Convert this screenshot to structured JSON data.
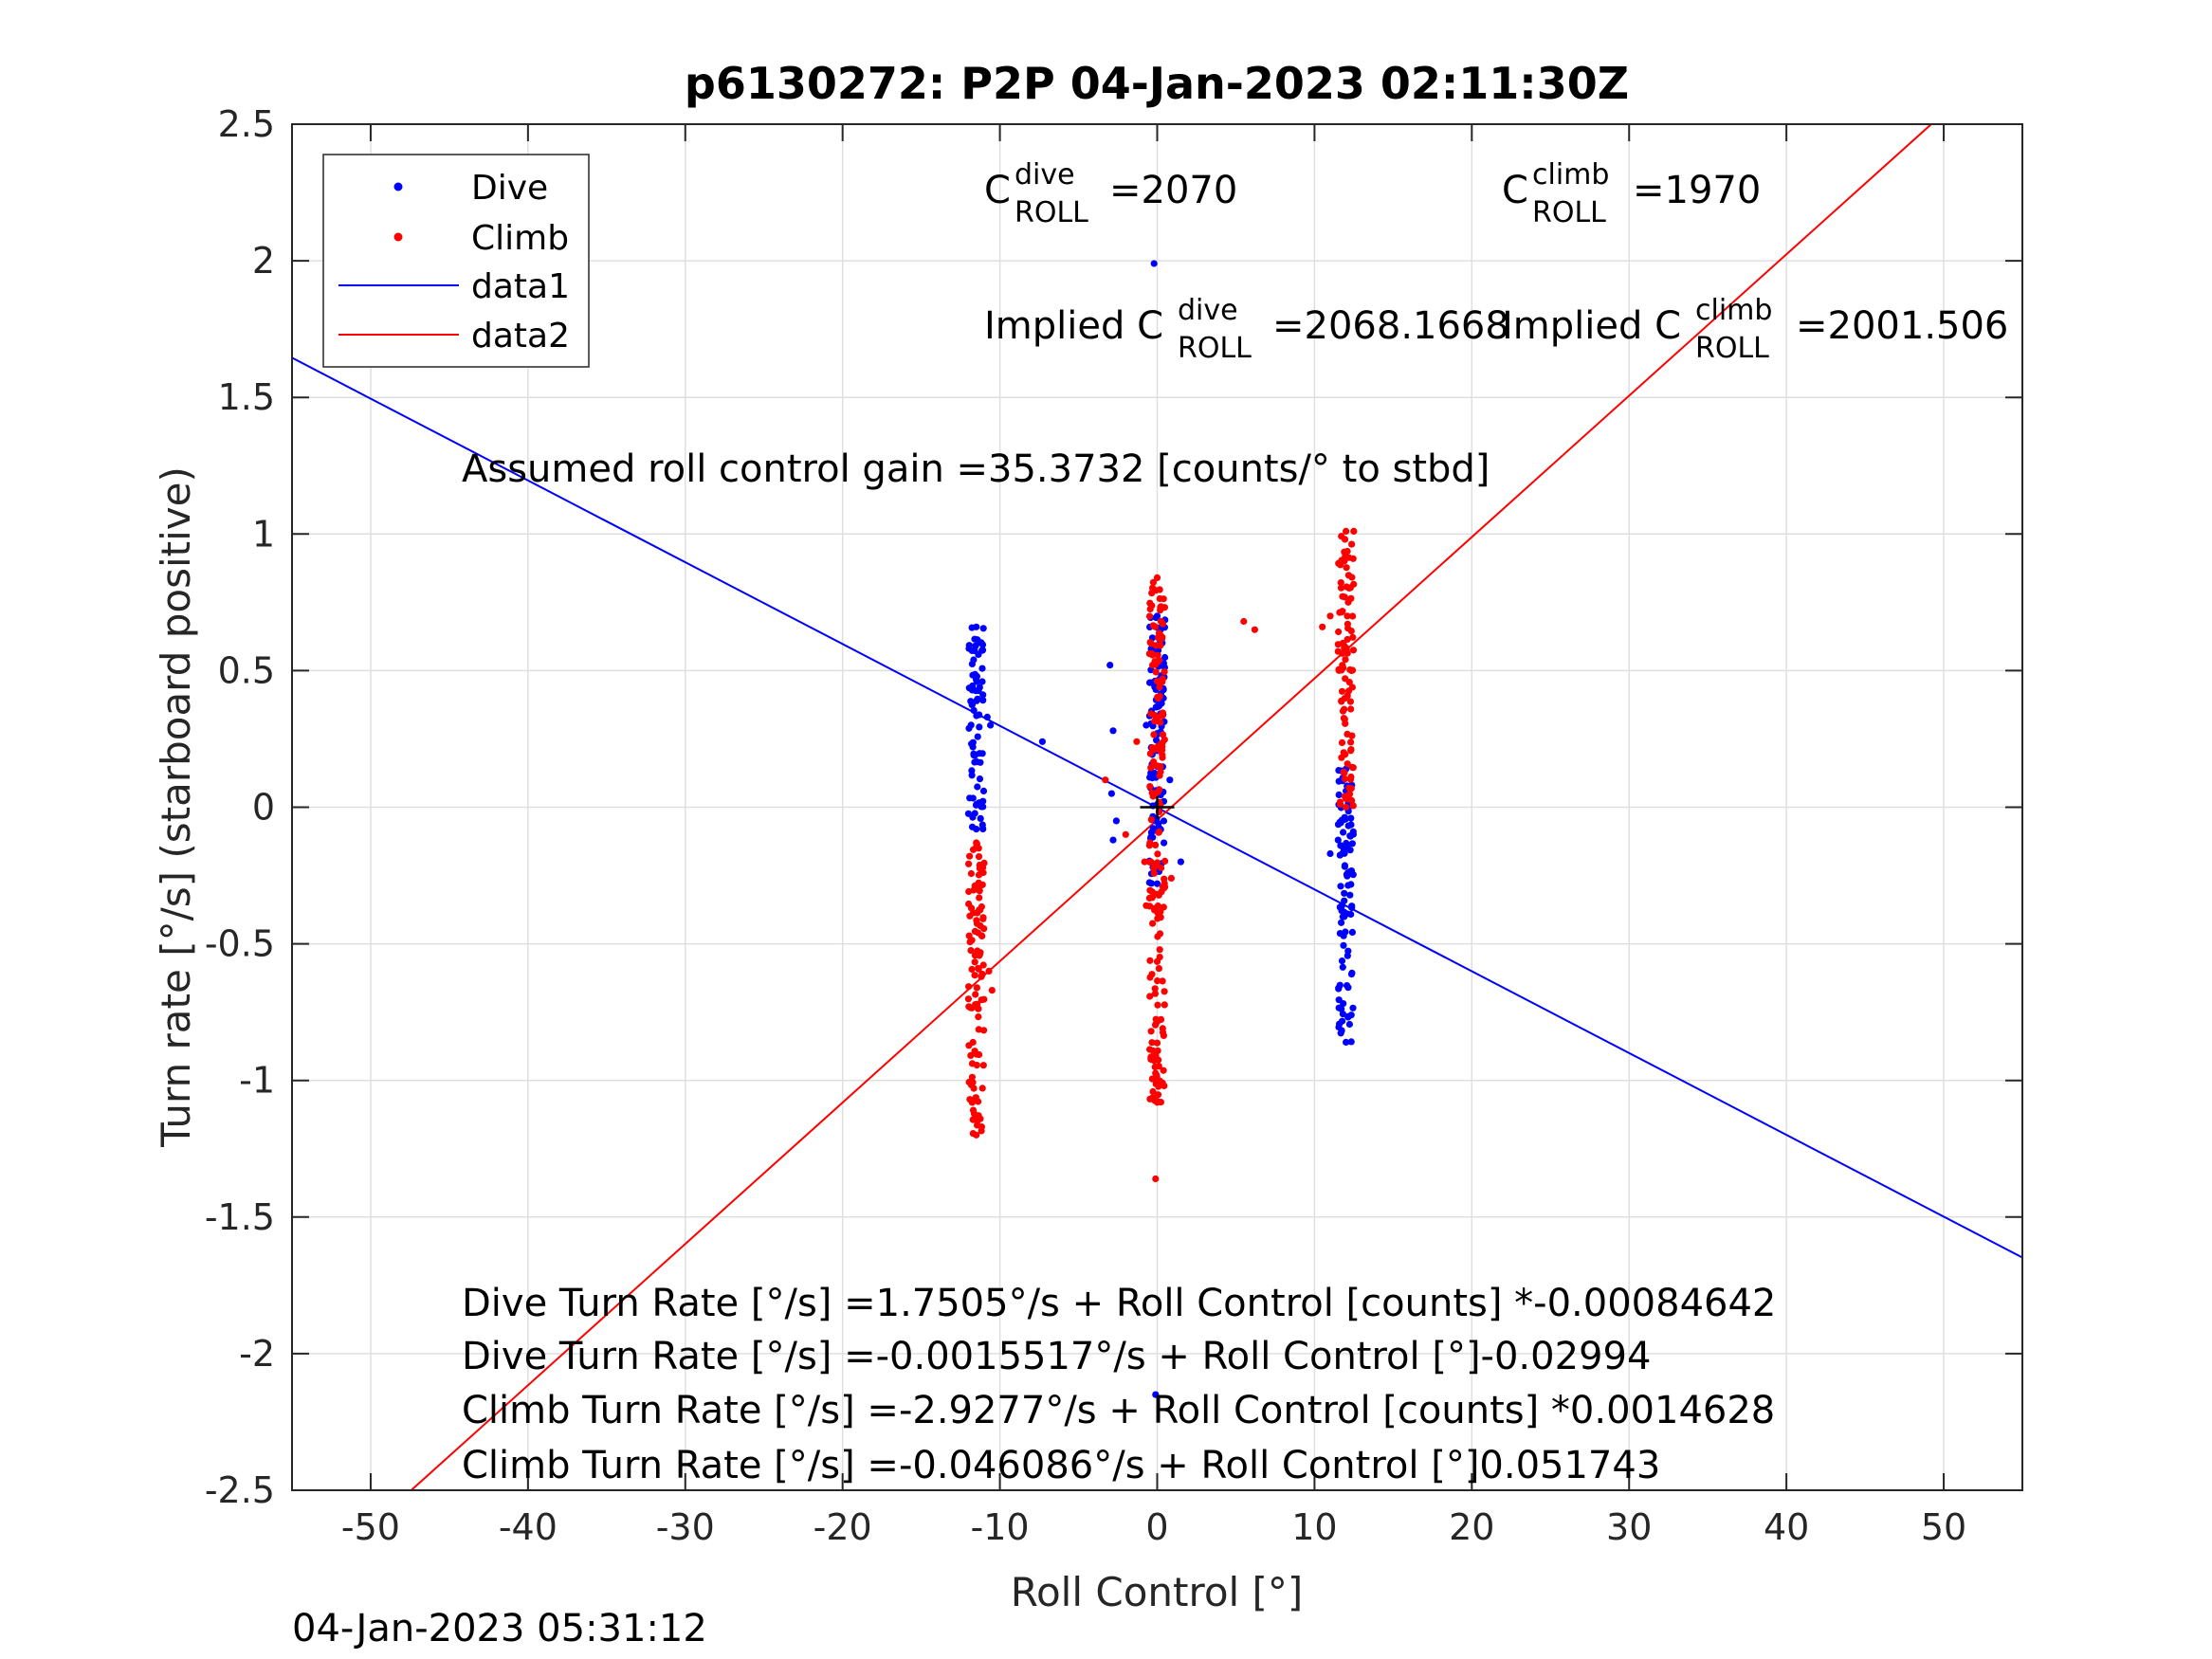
{
  "chart_data": {
    "type": "scatter",
    "title": "p6130272: P2P 04-Jan-2023 02:11:30Z",
    "xlabel": "Roll Control [°]",
    "ylabel": "Turn rate [°/s] (starboard positive)",
    "xlim": [
      -55,
      55
    ],
    "ylim": [
      -2.5,
      2.5
    ],
    "xticks": [
      -50,
      -40,
      -30,
      -20,
      -10,
      0,
      10,
      20,
      30,
      40,
      50
    ],
    "yticks": [
      2.5,
      2,
      1.5,
      1,
      0.5,
      0,
      -0.5,
      -1,
      -1.5,
      -2,
      -2.5
    ],
    "grid": true,
    "legend": {
      "position": "top-left",
      "entries": [
        {
          "label": "Dive",
          "color": "#0000ff",
          "kind": "marker"
        },
        {
          "label": "Climb",
          "color": "#ff0000",
          "kind": "marker"
        },
        {
          "label": "data1",
          "color": "#0000ff",
          "kind": "line"
        },
        {
          "label": "data2",
          "color": "#ff0000",
          "kind": "line"
        }
      ]
    },
    "series": [
      {
        "name": "Dive",
        "color": "#0000ff",
        "clusters": [
          {
            "x": -11.5,
            "ymin": -0.08,
            "ymax": 0.66
          },
          {
            "x": 0.0,
            "ymin": -0.28,
            "ymax": 0.7
          },
          {
            "x": 12.0,
            "ymin": -0.86,
            "ymax": 0.14
          }
        ],
        "extra_points": [
          {
            "x": -10.8,
            "y": 0.33
          },
          {
            "x": -10.6,
            "y": 0.3
          },
          {
            "x": -7.3,
            "y": 0.24
          },
          {
            "x": -3.0,
            "y": 0.52
          },
          {
            "x": -2.8,
            "y": 0.28
          },
          {
            "x": -2.9,
            "y": 0.05
          },
          {
            "x": -2.6,
            "y": -0.05
          },
          {
            "x": -2.8,
            "y": -0.12
          },
          {
            "x": -0.7,
            "y": 0.3
          },
          {
            "x": -0.2,
            "y": 1.99
          },
          {
            "x": -0.1,
            "y": -2.15
          },
          {
            "x": 1.5,
            "y": -0.2
          },
          {
            "x": 0.8,
            "y": 0.1
          },
          {
            "x": 11.0,
            "y": -0.17
          },
          {
            "x": 11.5,
            "y": -0.12
          }
        ]
      },
      {
        "name": "Climb",
        "color": "#ff0000",
        "clusters": [
          {
            "x": -11.5,
            "ymin": -1.2,
            "ymax": -0.13
          },
          {
            "x": 0.0,
            "ymin": -1.08,
            "ymax": 0.84
          },
          {
            "x": 12.0,
            "ymin": 0.0,
            "ymax": 1.01
          }
        ],
        "extra_points": [
          {
            "x": -10.5,
            "y": -0.67
          },
          {
            "x": -10.7,
            "y": -0.6
          },
          {
            "x": -3.3,
            "y": 0.1
          },
          {
            "x": -2.0,
            "y": -0.1
          },
          {
            "x": -1.3,
            "y": 0.24
          },
          {
            "x": -0.8,
            "y": -0.2
          },
          {
            "x": -0.7,
            "y": -0.36
          },
          {
            "x": -0.1,
            "y": -1.36
          },
          {
            "x": 0.9,
            "y": -0.26
          },
          {
            "x": 5.5,
            "y": 0.68
          },
          {
            "x": 6.2,
            "y": 0.65
          },
          {
            "x": 10.5,
            "y": 0.66
          },
          {
            "x": 11.0,
            "y": 0.7
          }
        ]
      },
      {
        "name": "data1",
        "kind": "line",
        "color": "#0000ff",
        "slope": -0.02994,
        "intercept": -0.0015517
      },
      {
        "name": "data2",
        "kind": "line",
        "color": "#ff0000",
        "slope": 0.051743,
        "intercept": -0.046086
      }
    ],
    "annotations": {
      "c_dive": {
        "prefix": "C",
        "sup": "dive",
        "sub": "ROLL",
        "value": "=2070"
      },
      "c_climb": {
        "prefix": "C",
        "sup": "climb",
        "sub": "ROLL",
        "value": "=1970"
      },
      "implied_dive": {
        "prefix": "Implied C",
        "sup": "dive",
        "sub": "ROLL",
        "value": "=2068.1668"
      },
      "implied_climb": {
        "prefix": "Implied C",
        "sup": "climb",
        "sub": "ROLL",
        "value": "=2001.506"
      },
      "gain": "Assumed roll control gain =35.3732 [counts/° to stbd]",
      "eq1": "Dive Turn Rate [°/s] =1.7505°/s + Roll Control [counts] *-0.00084642",
      "eq2": "Dive Turn Rate [°/s] =-0.0015517°/s + Roll Control [°]-0.02994",
      "eq3": "Climb Turn Rate [°/s] =-2.9277°/s + Roll Control [counts] *0.0014628",
      "eq4": "Climb Turn Rate [°/s] =-0.046086°/s + Roll Control [°]0.051743"
    },
    "center_marker": {
      "x": 0,
      "y": 0,
      "symbol": "+",
      "color": "#000000"
    }
  },
  "footer": {
    "timestamp": "04-Jan-2023 05:31:12"
  }
}
